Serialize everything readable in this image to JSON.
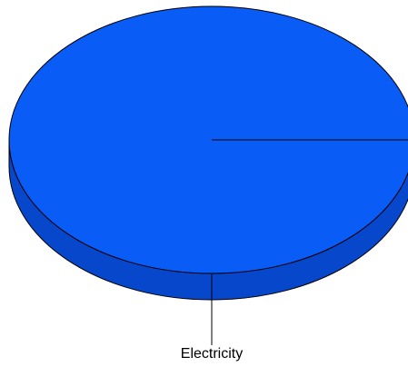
{
  "chart_data": {
    "type": "pie",
    "style": "3d",
    "slices": [
      {
        "label": "Electricity",
        "value": 100
      }
    ],
    "colors": {
      "top": "#0a5cf6",
      "side": "#0747cc",
      "outline": "#000000",
      "leader": "#000000"
    },
    "legend": "none"
  }
}
